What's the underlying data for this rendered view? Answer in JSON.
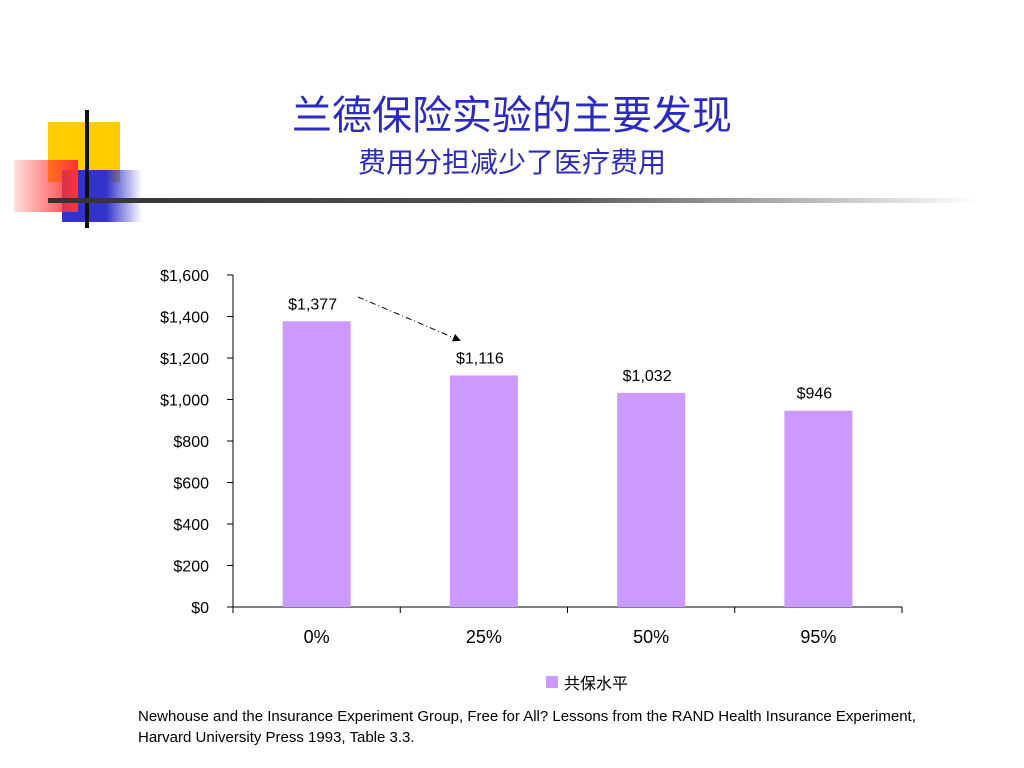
{
  "slide": {
    "title": "兰德保险实验的主要发现",
    "subtitle": "费用分担减少了医疗费用",
    "source": "Newhouse and the Insurance Experiment Group, Free for All? Lessons from the RAND Health Insurance Experiment, Harvard University Press 1993, Table 3.3."
  },
  "colors": {
    "title": "#2b2bbf",
    "bar": "#cc99ff",
    "deco_yellow": "#ffcc00",
    "deco_red": "#ff3333",
    "deco_blue": "#3333cc"
  },
  "chart_data": {
    "type": "bar",
    "categories": [
      "0%",
      "25%",
      "50%",
      "95%"
    ],
    "series": [
      {
        "name": "共保水平",
        "values": [
          1377,
          1116,
          1032,
          946
        ],
        "labels": [
          "$1,377",
          "$1,116",
          "$1,032",
          "$946"
        ]
      }
    ],
    "yticks": [
      "$0",
      "$200",
      "$400",
      "$600",
      "$800",
      "$1,000",
      "$1,200",
      "$1,400",
      "$1,600"
    ],
    "ylim": [
      0,
      1600
    ],
    "grid": false,
    "legend": "bottom-center",
    "annotation": "dashed arrow from 0% bar label to 25% bar"
  }
}
